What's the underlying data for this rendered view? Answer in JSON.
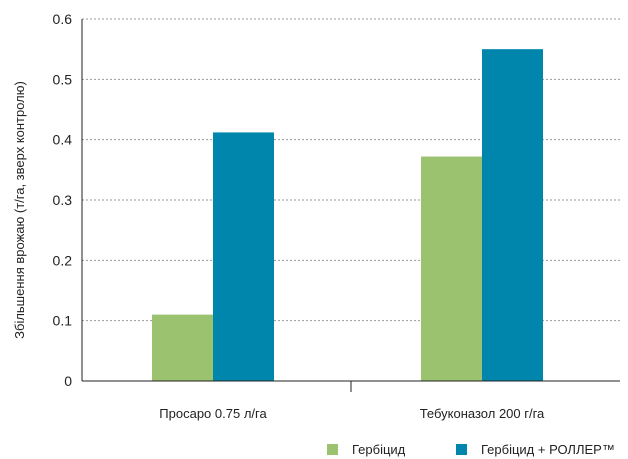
{
  "chart_data": {
    "type": "bar",
    "categories": [
      "Просаро 0.75 л/га",
      "Тебуконазол 200 г/га"
    ],
    "series": [
      {
        "name": "Гербіцид",
        "values": [
          0.11,
          0.372
        ],
        "color": "#9bc26e"
      },
      {
        "name": "Гербіцид + РОЛЛЕР™",
        "values": [
          0.412,
          0.55
        ],
        "color": "#0086ad"
      }
    ],
    "ylabel": "Збільшення врожаю (т/га, зверх контролю)",
    "xlabel": "",
    "ylim": [
      0,
      0.6
    ],
    "yticks": [
      "0",
      "0.1",
      "0.2",
      "0.3",
      "0.4",
      "0.5",
      "0.6"
    ],
    "grid": true,
    "legend_position": "bottom-right"
  }
}
